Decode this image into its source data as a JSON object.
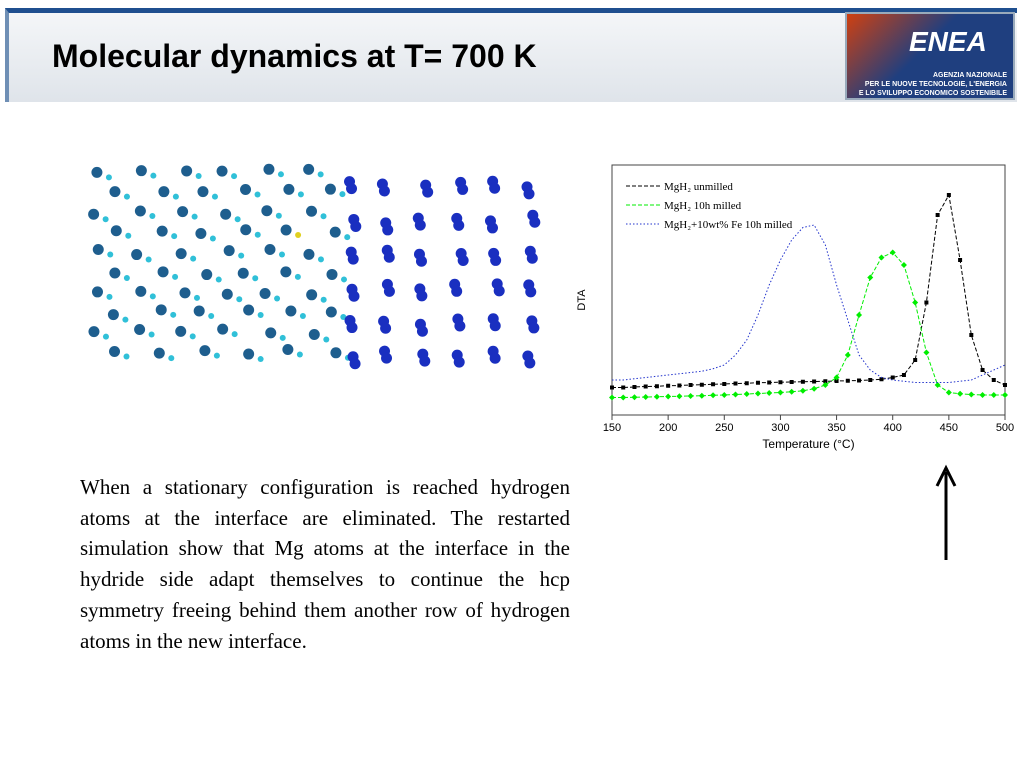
{
  "header": {
    "title": "Molecular dynamics at T= 700 K"
  },
  "logo": {
    "name": "ENEA",
    "lines": [
      "AGENZIA NAZIONALE",
      "PER LE NUOVE TECNOLOGIE, L'ENERGIA",
      "E LO SVILUPPO ECONOMICO SOSTENIBILE"
    ]
  },
  "body": {
    "text": "When a stationary configuration is reached hydrogen atoms at the interface are eliminated. The restarted simulation show that Mg atoms at the interface in the hydride side adapt themselves to continue the hcp symmetry freeing behind them another row of hydrogen atoms in the new interface."
  },
  "chart_data": {
    "type": "line",
    "x_label": "Temperature (°C)",
    "y_label": "DTA",
    "x": [
      150,
      160,
      170,
      180,
      190,
      200,
      210,
      220,
      230,
      240,
      250,
      260,
      270,
      280,
      290,
      300,
      310,
      320,
      330,
      340,
      350,
      360,
      370,
      380,
      390,
      400,
      410,
      420,
      430,
      440,
      450,
      460,
      470,
      480,
      490,
      500
    ],
    "xlim": [
      150,
      500
    ],
    "xticks": [
      150,
      200,
      250,
      300,
      350,
      400,
      450,
      500
    ],
    "ylim": [
      0,
      100
    ],
    "series": [
      {
        "name": "MgH₂ unmilled",
        "color": "#000000",
        "style": "square",
        "values": [
          11,
          11,
          11.2,
          11.4,
          11.5,
          11.7,
          11.8,
          12,
          12.1,
          12.3,
          12.4,
          12.6,
          12.7,
          12.9,
          13,
          13.1,
          13.2,
          13.3,
          13.4,
          13.5,
          13.6,
          13.7,
          13.8,
          14,
          14.3,
          15,
          16,
          22,
          45,
          80,
          88,
          62,
          32,
          18,
          14,
          12
        ]
      },
      {
        "name": "MgH₂ 10h milled",
        "color": "#00ee00",
        "style": "diamond",
        "values": [
          7,
          7,
          7.1,
          7.2,
          7.3,
          7.4,
          7.5,
          7.6,
          7.7,
          7.9,
          8,
          8.2,
          8.4,
          8.6,
          8.8,
          9,
          9.3,
          9.7,
          10.5,
          12,
          15,
          24,
          40,
          55,
          63,
          65,
          60,
          45,
          25,
          12,
          9,
          8.5,
          8.2,
          8,
          8,
          8
        ]
      },
      {
        "name": "MgH₂+10wt% Fe 10h milled",
        "color": "#2233cc",
        "style": "dotted",
        "values": [
          14,
          14,
          14.5,
          15,
          15.5,
          16,
          16.5,
          17,
          17.5,
          18.5,
          20,
          24,
          30,
          40,
          52,
          62,
          70,
          75,
          76,
          68,
          52,
          38,
          24,
          18,
          15,
          14,
          13.5,
          13,
          13,
          13,
          13,
          13.5,
          14,
          16,
          18,
          20
        ]
      }
    ],
    "legend": "upper-left"
  }
}
